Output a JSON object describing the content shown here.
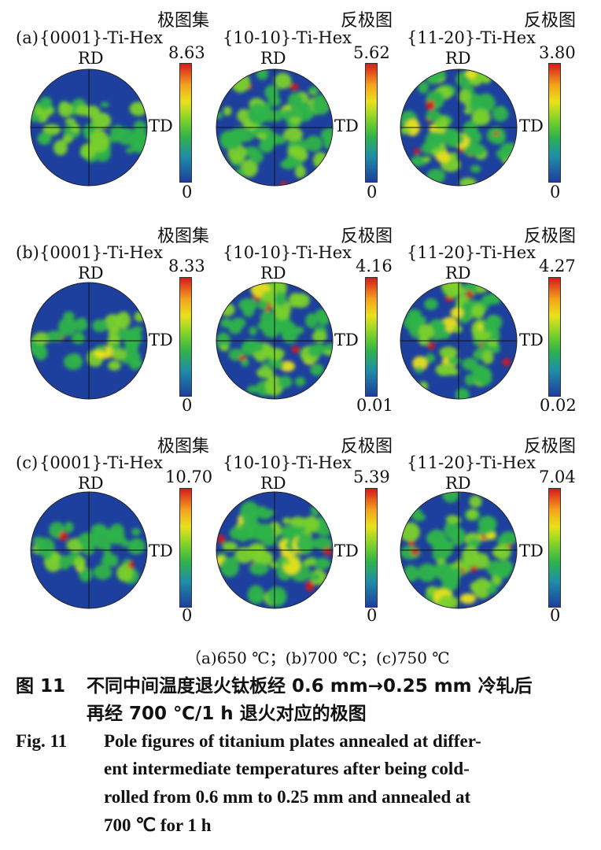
{
  "rows": [
    {
      "label": "(a)",
      "figures": [
        {
          "header": "极图集",
          "title": "{0001}-Ti-Hex",
          "rd": "RD",
          "td": "TD",
          "max": "8.63",
          "min": "0"
        },
        {
          "header": "反极图",
          "title": "{10-10}-Ti-Hex",
          "rd": "RD",
          "td": "TD",
          "max": "5.62",
          "min": "0"
        },
        {
          "header": "反极图",
          "title": "{11-20}-Ti-Hex",
          "rd": "RD",
          "td": "TD",
          "max": "3.80",
          "min": "0"
        }
      ]
    },
    {
      "label": "(b)",
      "figures": [
        {
          "header": "极图集",
          "title": "{0001}-Ti-Hex",
          "rd": "RD",
          "td": "TD",
          "max": "8.33",
          "min": "0"
        },
        {
          "header": "反极图",
          "title": "{10-10}-Ti-Hex",
          "rd": "RD",
          "td": "TD",
          "max": "4.16",
          "min": "0.01"
        },
        {
          "header": "反极图",
          "title": "{11-20}-Ti-Hex",
          "rd": "RD",
          "td": "TD",
          "max": "4.27",
          "min": "0.02"
        }
      ]
    },
    {
      "label": "(c)",
      "figures": [
        {
          "header": "极图集",
          "title": "{0001}-Ti-Hex",
          "rd": "RD",
          "td": "TD",
          "max": "10.70",
          "min": "0"
        },
        {
          "header": "反极图",
          "title": "{10-10}-Ti-Hex",
          "rd": "RD",
          "td": "TD",
          "max": "5.39",
          "min": "0"
        },
        {
          "header": "反极图",
          "title": "{11-20}-Ti-Hex",
          "rd": "RD",
          "td": "TD",
          "max": "7.04",
          "min": "0"
        }
      ]
    }
  ],
  "colormap": [
    "#1d3f9e",
    "#1f8fa8",
    "#2fb34a",
    "#7bd12a",
    "#e9e21a",
    "#f4a21c",
    "#d7191c"
  ],
  "subcaption": "（a)650 ℃；(b)700 ℃；(c)750 ℃",
  "caption_cn": {
    "label": "图 11",
    "line1": "不同中间温度退火钛板经 0.6 mm→0.25 mm 冷轧后",
    "line2": "再经 700 ℃/1 h 退火对应的极图"
  },
  "caption_en": {
    "label": "Fig. 11",
    "line1": "Pole figures of titanium plates annealed at differ-",
    "line2": "ent intermediate temperatures after being cold-",
    "line3": "rolled from 0.6 mm to 0.25 mm and annealed at",
    "line4": "700 ℃ for 1 h"
  }
}
